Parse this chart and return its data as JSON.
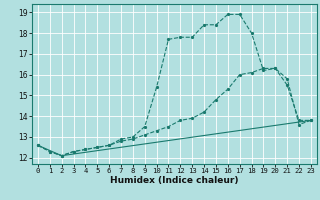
{
  "xlabel": "Humidex (Indice chaleur)",
  "bg_color": "#b2e0e0",
  "grid_color": "#ffffff",
  "line_color": "#1a7a6e",
  "xlim": [
    -0.5,
    23.5
  ],
  "ylim": [
    11.7,
    19.4
  ],
  "yticks": [
    12,
    13,
    14,
    15,
    16,
    17,
    18,
    19
  ],
  "xticks": [
    0,
    1,
    2,
    3,
    4,
    5,
    6,
    7,
    8,
    9,
    10,
    11,
    12,
    13,
    14,
    15,
    16,
    17,
    18,
    19,
    20,
    21,
    22,
    23
  ],
  "series1_x": [
    0,
    1,
    2,
    3,
    4,
    5,
    6,
    7,
    8,
    9,
    10,
    11,
    12,
    13,
    14,
    15,
    16,
    17,
    18,
    19,
    20,
    21,
    22,
    23
  ],
  "series1_y": [
    12.6,
    12.3,
    12.1,
    12.3,
    12.4,
    12.5,
    12.6,
    12.9,
    13.0,
    13.5,
    15.4,
    17.7,
    17.8,
    17.8,
    18.4,
    18.4,
    18.9,
    18.9,
    18.0,
    16.2,
    16.3,
    15.5,
    13.8,
    13.8
  ],
  "series2_x": [
    0,
    1,
    2,
    3,
    4,
    5,
    6,
    7,
    8,
    9,
    10,
    11,
    12,
    13,
    14,
    15,
    16,
    17,
    18,
    19,
    20,
    21,
    22,
    23
  ],
  "series2_y": [
    12.6,
    12.3,
    12.1,
    12.3,
    12.4,
    12.5,
    12.6,
    12.8,
    12.9,
    13.1,
    13.3,
    13.5,
    13.8,
    13.9,
    14.2,
    14.8,
    15.3,
    16.0,
    16.1,
    16.3,
    16.3,
    15.8,
    13.6,
    13.8
  ],
  "series3_x": [
    0,
    2,
    23
  ],
  "series3_y": [
    12.6,
    12.1,
    13.8
  ]
}
